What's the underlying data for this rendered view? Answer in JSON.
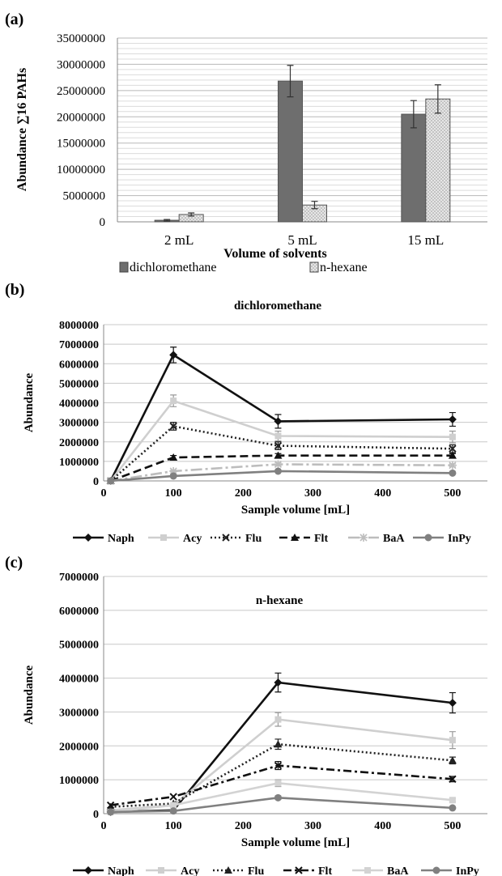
{
  "chart_data": [
    {
      "panel_label": "(a)",
      "type": "bar",
      "ylabel": "Abundance ∑16 PAHs",
      "xlabel": "Volume of solvents",
      "categories": [
        "2 mL",
        "5 mL",
        "15 mL"
      ],
      "ylim": [
        0,
        35000000
      ],
      "yticks": [
        "0",
        "5000000",
        "10000000",
        "15000000",
        "20000000",
        "25000000",
        "30000000",
        "35000000"
      ],
      "series": [
        {
          "name": "dichloromethane",
          "values": [
            300000,
            26800000,
            20500000
          ],
          "errors": [
            150000,
            3000000,
            2600000
          ],
          "color": "#6e6e6e"
        },
        {
          "name": "n-hexane",
          "values": [
            1400000,
            3200000,
            23400000
          ],
          "errors": [
            300000,
            700000,
            2700000
          ],
          "color": "#cccccc"
        }
      ],
      "grid": true,
      "legend_position": "bottom"
    },
    {
      "panel_label": "(b)",
      "type": "line",
      "title": "dichloromethane",
      "xlabel": "Sample volume [mL]",
      "ylabel": "Abundance",
      "xlim": [
        0,
        550
      ],
      "ylim": [
        0,
        8000000
      ],
      "xticks": [
        "0",
        "100",
        "200",
        "300",
        "400",
        "500"
      ],
      "yticks": [
        "0",
        "1000000",
        "2000000",
        "3000000",
        "4000000",
        "5000000",
        "6000000",
        "7000000",
        "8000000"
      ],
      "x": [
        10,
        100,
        250,
        500
      ],
      "series": [
        {
          "name": "Naph",
          "values": [
            0,
            6450000,
            3050000,
            3150000
          ],
          "errors": [
            0,
            400000,
            350000,
            350000
          ],
          "color": "#111111",
          "dash": "",
          "marker": "diamond"
        },
        {
          "name": "Acy",
          "values": [
            0,
            4100000,
            2300000,
            2250000
          ],
          "errors": [
            0,
            300000,
            250000,
            300000
          ],
          "color": "#cfcfcf",
          "dash": "",
          "marker": "square"
        },
        {
          "name": "Flu",
          "values": [
            0,
            2800000,
            1800000,
            1650000
          ],
          "errors": [
            0,
            200000,
            200000,
            200000
          ],
          "color": "#222222",
          "dash": "2,3",
          "marker": "x"
        },
        {
          "name": "Flt",
          "values": [
            0,
            1200000,
            1300000,
            1300000
          ],
          "errors": [
            0,
            100000,
            100000,
            100000
          ],
          "color": "#111111",
          "dash": "10,5",
          "marker": "triangle"
        },
        {
          "name": "BaA",
          "values": [
            0,
            500000,
            850000,
            800000
          ],
          "errors": [
            0,
            50000,
            80000,
            80000
          ],
          "color": "#bdbdbd",
          "dash": "14,4,3,4",
          "marker": "star"
        },
        {
          "name": "InPy",
          "values": [
            0,
            250000,
            500000,
            400000
          ],
          "errors": [
            0,
            30000,
            50000,
            40000
          ],
          "color": "#808080",
          "dash": "",
          "marker": "circle"
        }
      ],
      "grid": true,
      "legend_position": "bottom"
    },
    {
      "panel_label": "(c)",
      "type": "line",
      "title": "n-hexane",
      "xlabel": "Sample volume [mL]",
      "ylabel": "Abundance",
      "xlim": [
        0,
        550
      ],
      "ylim": [
        0,
        7000000
      ],
      "xticks": [
        "0",
        "100",
        "200",
        "300",
        "400",
        "500"
      ],
      "yticks": [
        "0",
        "1000000",
        "2000000",
        "3000000",
        "4000000",
        "5000000",
        "6000000",
        "7000000"
      ],
      "x": [
        10,
        100,
        250,
        500
      ],
      "series": [
        {
          "name": "Naph",
          "values": [
            50000,
            100000,
            3870000,
            3270000
          ],
          "errors": [
            0,
            0,
            280000,
            300000
          ],
          "color": "#111111",
          "dash": "",
          "marker": "diamond"
        },
        {
          "name": "Acy",
          "values": [
            100000,
            250000,
            2780000,
            2170000
          ],
          "errors": [
            0,
            0,
            200000,
            250000
          ],
          "color": "#cfcfcf",
          "dash": "",
          "marker": "square"
        },
        {
          "name": "Flu",
          "values": [
            200000,
            300000,
            2050000,
            1570000
          ],
          "errors": [
            0,
            0,
            150000,
            100000
          ],
          "color": "#222222",
          "dash": "2,3",
          "marker": "triangle"
        },
        {
          "name": "Flt",
          "values": [
            250000,
            500000,
            1420000,
            1020000
          ],
          "errors": [
            0,
            0,
            120000,
            80000
          ],
          "color": "#111111",
          "dash": "10,4,3,4",
          "marker": "x"
        },
        {
          "name": "BaA",
          "values": [
            50000,
            250000,
            900000,
            400000
          ],
          "errors": [
            0,
            0,
            100000,
            50000
          ],
          "color": "#d3d3d3",
          "dash": "",
          "marker": "square"
        },
        {
          "name": "InPy",
          "values": [
            50000,
            80000,
            470000,
            170000
          ],
          "errors": [
            0,
            0,
            50000,
            30000
          ],
          "color": "#808080",
          "dash": "",
          "marker": "circle"
        }
      ],
      "grid": true,
      "legend_position": "bottom"
    }
  ]
}
